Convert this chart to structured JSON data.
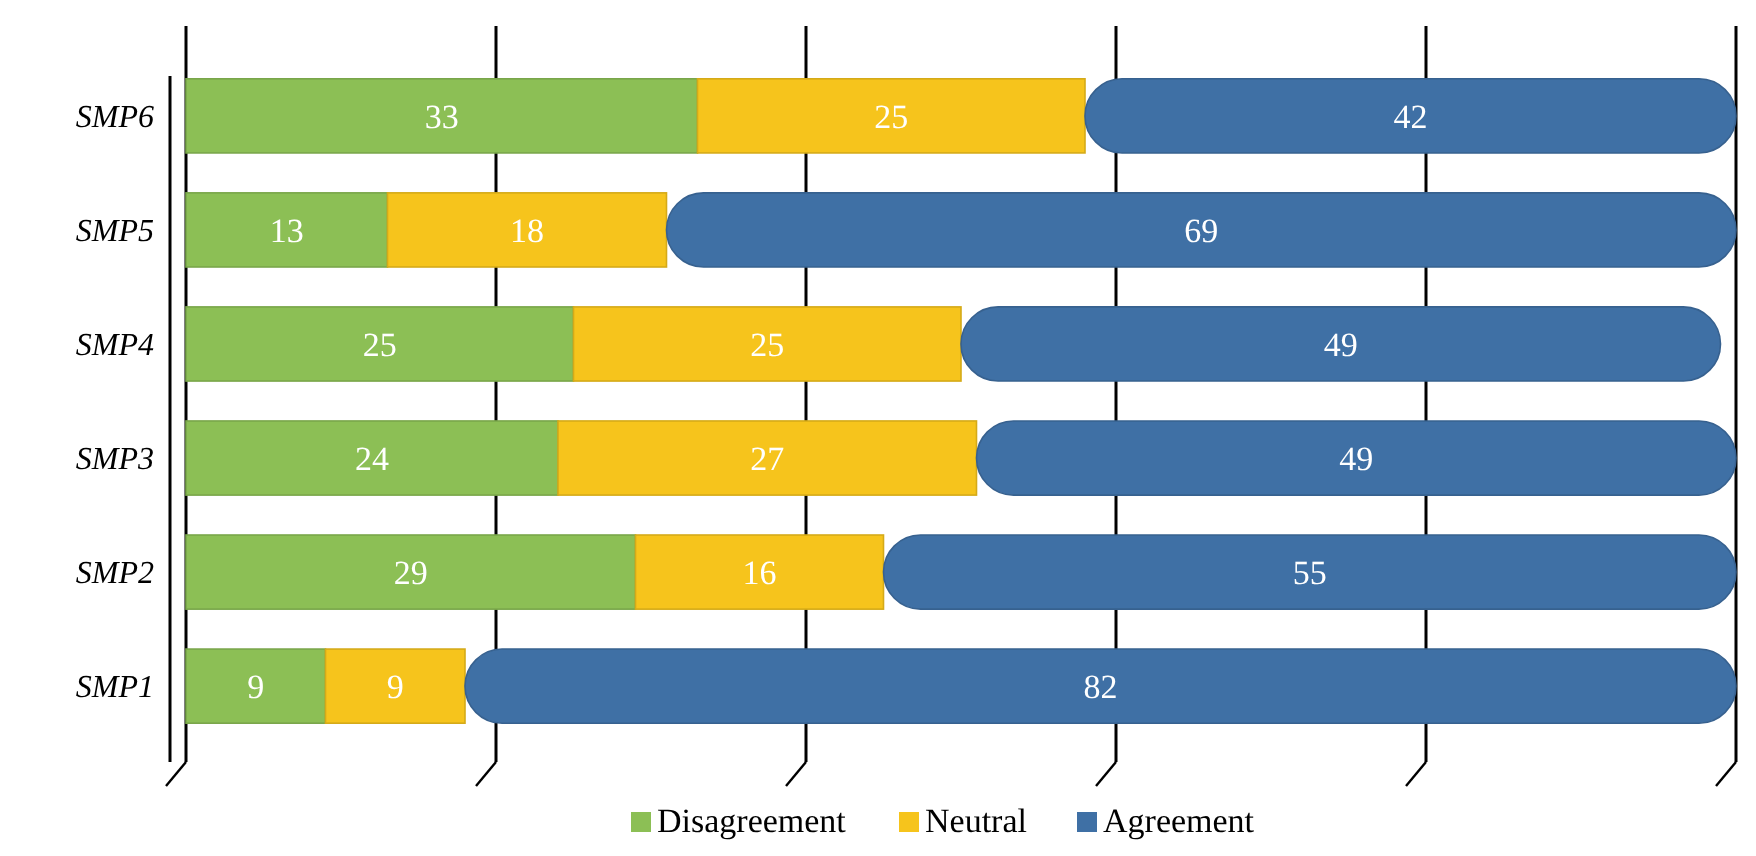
{
  "chart_data": {
    "type": "bar",
    "orientation": "horizontal",
    "stacked": true,
    "categories": [
      "SMP6",
      "SMP5",
      "SMP4",
      "SMP3",
      "SMP2",
      "SMP1"
    ],
    "series": [
      {
        "name": "Disagreement",
        "color": "#8cbf55",
        "values": [
          33,
          13,
          25,
          24,
          29,
          9
        ]
      },
      {
        "name": "Neutral",
        "color": "#f6c41c",
        "values": [
          25,
          18,
          25,
          27,
          16,
          9
        ]
      },
      {
        "name": "Agreement",
        "color": "#3f70a5",
        "values": [
          42,
          69,
          49,
          49,
          55,
          82
        ]
      }
    ],
    "xlim": [
      0,
      100
    ],
    "xticks": [
      {
        "value": 0,
        "label": null
      },
      {
        "value": 20,
        "label": null
      },
      {
        "value": 40,
        "label": null
      },
      {
        "value": 60,
        "label": null
      },
      {
        "value": 80,
        "label": null
      },
      {
        "value": 100,
        "label": null
      }
    ],
    "grid": "x",
    "tick_labels": "y",
    "data_labels": true,
    "legend": "bottom"
  }
}
